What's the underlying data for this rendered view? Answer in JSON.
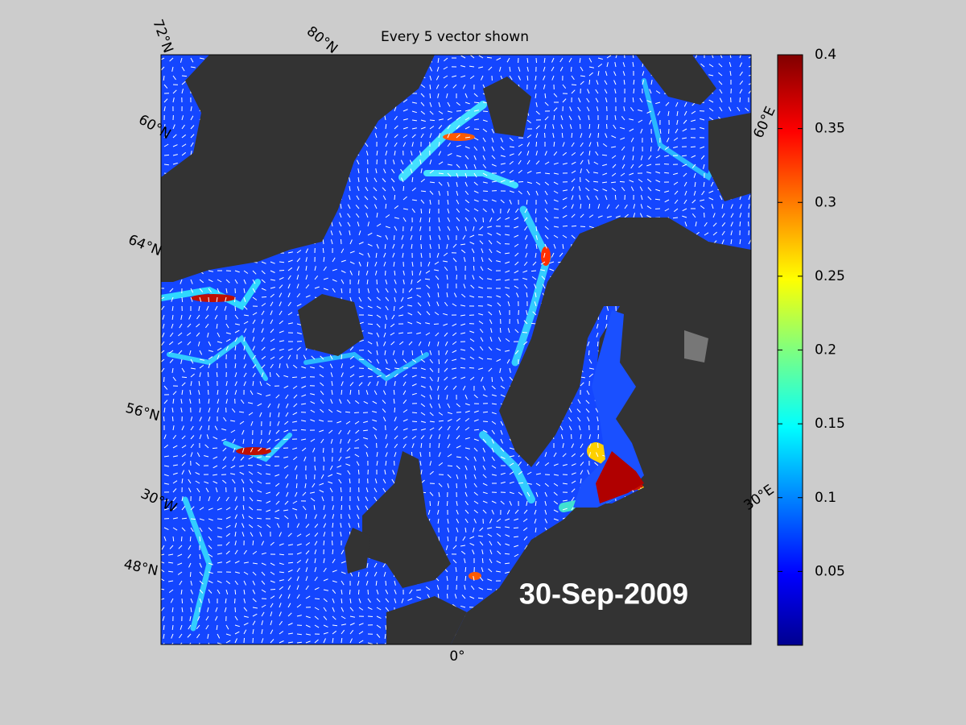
{
  "map": {
    "title": "Every 5 vector shown",
    "date": "30-Sep-2009",
    "latitude_labels": [
      "72°N",
      "80°N",
      "60°N",
      "64°N",
      "56°N",
      "48°N"
    ],
    "longitude_labels": [
      "30°W",
      "0°",
      "30°E",
      "60°E"
    ],
    "colorbar": {
      "lim": [
        0,
        0.4
      ],
      "ticks": [
        0.05,
        0.1,
        0.15,
        0.2,
        0.25,
        0.3,
        0.35,
        0.4
      ]
    }
  }
}
